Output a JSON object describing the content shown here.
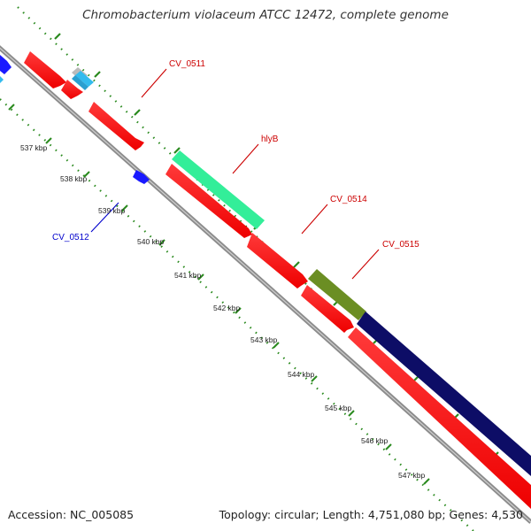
{
  "title": "Chromobacterium violaceum ATCC 12472, complete genome",
  "footer": {
    "accession": "Accession: NC_005085",
    "summary": "Topology: circular; Length: 4,751,080 bp; Genes: 4,530"
  },
  "ruler_labels": [
    "537 kbp",
    "538 kbp",
    "539 kbp",
    "540 kbp",
    "541 kbp",
    "542 kbp",
    "543 kbp",
    "544 kbp",
    "545 kbp",
    "546 kbp",
    "547 kbp"
  ],
  "gene_labels": {
    "cv0511": "CV_0511",
    "hlyb": "hlyB",
    "cv0514": "CV_0514",
    "cv0515": "CV_0515",
    "cv0512": "CV_0512"
  },
  "colors": {
    "backbone": "#8c8c8c",
    "tick": "#2a8a1e",
    "cds_red": "#ff1a1a",
    "cds_blue": "#1a1aff",
    "cds_cyan": "#33bbee",
    "cds_gray": "#bbbbbb",
    "hlyb": "#33ee99",
    "cv0515": "#6b8e23",
    "cds_navy": "#0d0d66",
    "label_red": "#cc0000",
    "label_blue": "#0000cc"
  }
}
